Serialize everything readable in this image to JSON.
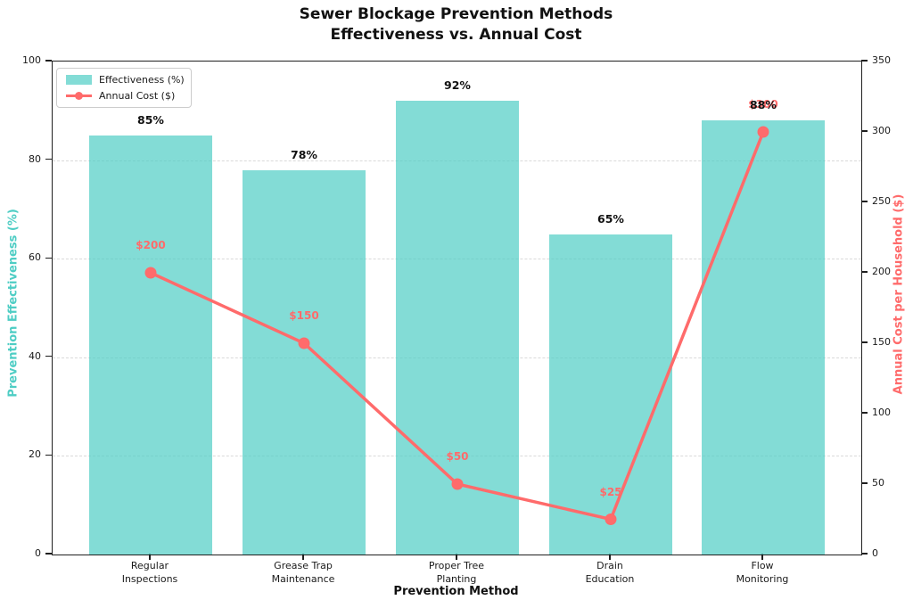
{
  "title": {
    "line1": "Sewer Blockage Prevention Methods",
    "line2": "Effectiveness vs. Annual Cost"
  },
  "legend": {
    "items": [
      {
        "label": "Effectiveness (%)",
        "swatch": "teal-bar-swatch"
      },
      {
        "label": "Annual Cost ($)",
        "swatch": "red-line-marker"
      }
    ]
  },
  "axes": {
    "left": {
      "label": "Prevention Effectiveness (%)",
      "color": "#4ECDC4",
      "ticks": [
        "0",
        "20",
        "40",
        "60",
        "80",
        "100"
      ]
    },
    "right": {
      "label": "Annual Cost per Household ($)",
      "color": "#FF6B6B",
      "ticks": [
        "0",
        "50",
        "100",
        "150",
        "200",
        "250",
        "300",
        "350"
      ]
    },
    "x": {
      "label": "Prevention Method"
    }
  },
  "colors": {
    "bar_fill": "#4ECDC4",
    "bar_fill_alpha": 0.7,
    "line": "#FF6B6B",
    "grid": "#D9D9D9"
  },
  "chart_data": {
    "type": "bar",
    "subtype": "bar-and-line-dual-axis",
    "categories": [
      "Regular\nInspections",
      "Grease Trap\nMaintenance",
      "Proper Tree\nPlanting",
      "Drain\nEducation",
      "Flow\nMonitoring"
    ],
    "series": [
      {
        "name": "Effectiveness (%)",
        "chart_type": "bar",
        "axis": "left",
        "values": [
          85,
          78,
          92,
          65,
          88
        ],
        "labels": [
          "85%",
          "78%",
          "92%",
          "65%",
          "88%"
        ]
      },
      {
        "name": "Annual Cost ($)",
        "chart_type": "line",
        "axis": "right",
        "values": [
          200,
          150,
          50,
          25,
          300
        ],
        "labels": [
          "$200",
          "$150",
          "$50",
          "$25",
          "$300"
        ]
      }
    ],
    "title": "Sewer Blockage Prevention Methods\nEffectiveness vs. Annual Cost",
    "xlabel": "Prevention Method",
    "ylabel_left": "Prevention Effectiveness (%)",
    "ylabel_right": "Annual Cost per Household ($)",
    "ylim_left": [
      0,
      100
    ],
    "ylim_right": [
      0,
      350
    ],
    "grid": true,
    "grid_style": "dashed",
    "legend_position": "upper left"
  }
}
